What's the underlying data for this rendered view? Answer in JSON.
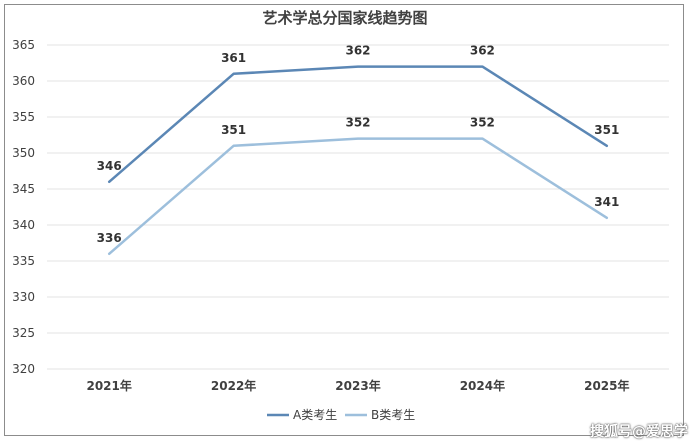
{
  "chart_data": {
    "type": "line",
    "title": "艺术学总分国家线趋势图",
    "xlabel": "",
    "ylabel": "",
    "categories": [
      "2021年",
      "2022年",
      "2023年",
      "2024年",
      "2025年"
    ],
    "ylim": [
      320,
      365
    ],
    "yticks": [
      320,
      325,
      330,
      335,
      340,
      345,
      350,
      355,
      360,
      365
    ],
    "grid": true,
    "legend_position": "bottom",
    "series": [
      {
        "name": "A类考生",
        "values": [
          346,
          361,
          362,
          362,
          351
        ],
        "color": "#5b87b5"
      },
      {
        "name": "B类考生",
        "values": [
          336,
          351,
          352,
          352,
          341
        ],
        "color": "#9dbfdc"
      }
    ]
  },
  "watermark": "搜狐号@爱思学"
}
